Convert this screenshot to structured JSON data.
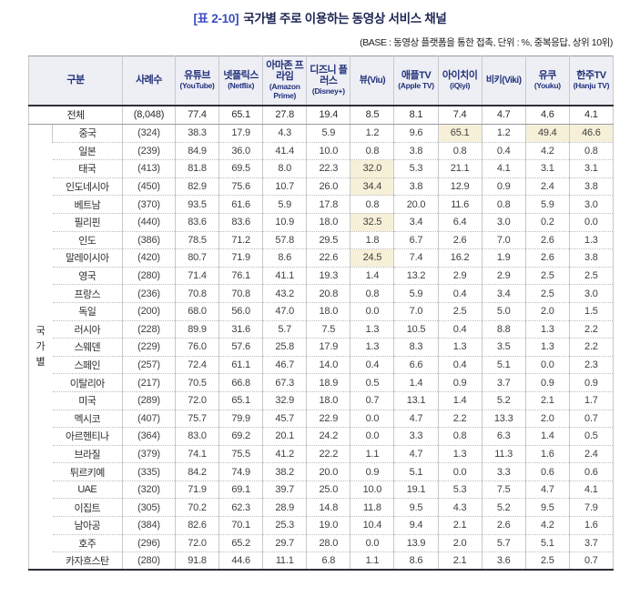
{
  "title": {
    "tag": "[표 2-10]",
    "text": "국가별 주로 이용하는 동영상 서비스 채널"
  },
  "subtitle": "(BASE : 동영상 플랫폼을 통한 접촉, 단위 : %, 중복응답, 상위 10위)",
  "colors": {
    "title_tag": "#3a4cc1",
    "title_text": "#1d2553",
    "header_bg": "#edeff5",
    "header_text": "#23317b",
    "highlight_bg": "#f6f0d8",
    "body_text": "#404040",
    "border_dark": "#2e2e38",
    "border_light": "#c9c9cd"
  },
  "table": {
    "corner_header": "구분",
    "n_header": "사례수",
    "group_label": "국가별",
    "group_label_chars": [
      "국",
      "가",
      "별"
    ],
    "columns": [
      {
        "ko": "유튜브",
        "en": "(YouTube)",
        "inline": false
      },
      {
        "ko": "넷플릭스",
        "en": "(Netflix)",
        "inline": false
      },
      {
        "ko": "아마존 프라임",
        "en": "(Amazon Prime)",
        "inline": false
      },
      {
        "ko": "디즈니 플러스",
        "en": "(Disney+)",
        "inline": false
      },
      {
        "ko": "뷰",
        "en": "(Viu)",
        "inline": true
      },
      {
        "ko": "애플TV",
        "en": "(Apple TV)",
        "inline": false
      },
      {
        "ko": "아이치이",
        "en": "(iQiyi)",
        "inline": false
      },
      {
        "ko": "비키",
        "en": "(Viki)",
        "inline": true
      },
      {
        "ko": "유쿠",
        "en": "(Youku)",
        "inline": false
      },
      {
        "ko": "한주TV",
        "en": "(Hanju TV)",
        "inline": false
      }
    ],
    "total_row": {
      "label": "전체",
      "n": "(8,048)",
      "values": [
        "77.4",
        "65.1",
        "27.8",
        "19.4",
        "8.5",
        "8.1",
        "7.4",
        "4.7",
        "4.6",
        "4.1"
      ]
    },
    "rows": [
      {
        "label": "중국",
        "n": "(324)",
        "values": [
          "38.3",
          "17.9",
          "4.3",
          "5.9",
          "1.2",
          "9.6",
          "65.1",
          "1.2",
          "49.4",
          "46.6"
        ],
        "highlights": [
          6,
          8,
          9
        ]
      },
      {
        "label": "일본",
        "n": "(239)",
        "values": [
          "84.9",
          "36.0",
          "41.4",
          "10.0",
          "0.8",
          "3.8",
          "0.8",
          "0.4",
          "4.2",
          "0.8"
        ],
        "highlights": []
      },
      {
        "label": "태국",
        "n": "(413)",
        "values": [
          "81.8",
          "69.5",
          "8.0",
          "22.3",
          "32.0",
          "5.3",
          "21.1",
          "4.1",
          "3.1",
          "3.1"
        ],
        "highlights": [
          4
        ]
      },
      {
        "label": "인도네시아",
        "n": "(450)",
        "values": [
          "82.9",
          "75.6",
          "10.7",
          "26.0",
          "34.4",
          "3.8",
          "12.9",
          "0.9",
          "2.4",
          "3.8"
        ],
        "highlights": [
          4
        ]
      },
      {
        "label": "베트남",
        "n": "(370)",
        "values": [
          "93.5",
          "61.6",
          "5.9",
          "17.8",
          "0.8",
          "20.0",
          "11.6",
          "0.8",
          "5.9",
          "3.0"
        ],
        "highlights": []
      },
      {
        "label": "필리핀",
        "n": "(440)",
        "values": [
          "83.6",
          "83.6",
          "10.9",
          "18.0",
          "32.5",
          "3.4",
          "6.4",
          "3.0",
          "0.2",
          "0.0"
        ],
        "highlights": [
          4
        ]
      },
      {
        "label": "인도",
        "n": "(386)",
        "values": [
          "78.5",
          "71.2",
          "57.8",
          "29.5",
          "1.8",
          "6.7",
          "2.6",
          "7.0",
          "2.6",
          "1.3"
        ],
        "highlights": []
      },
      {
        "label": "말레이시아",
        "n": "(420)",
        "values": [
          "80.7",
          "71.9",
          "8.6",
          "22.6",
          "24.5",
          "7.4",
          "16.2",
          "1.9",
          "2.6",
          "3.8"
        ],
        "highlights": [
          4
        ]
      },
      {
        "label": "영국",
        "n": "(280)",
        "values": [
          "71.4",
          "76.1",
          "41.1",
          "19.3",
          "1.4",
          "13.2",
          "2.9",
          "2.9",
          "2.5",
          "2.5"
        ],
        "highlights": []
      },
      {
        "label": "프랑스",
        "n": "(236)",
        "values": [
          "70.8",
          "70.8",
          "43.2",
          "20.8",
          "0.8",
          "5.9",
          "0.4",
          "3.4",
          "2.5",
          "3.0"
        ],
        "highlights": []
      },
      {
        "label": "독일",
        "n": "(200)",
        "values": [
          "68.0",
          "56.0",
          "47.0",
          "18.0",
          "0.0",
          "7.0",
          "2.5",
          "5.0",
          "2.0",
          "1.5"
        ],
        "highlights": []
      },
      {
        "label": "러시아",
        "n": "(228)",
        "values": [
          "89.9",
          "31.6",
          "5.7",
          "7.5",
          "1.3",
          "10.5",
          "0.4",
          "8.8",
          "1.3",
          "2.2"
        ],
        "highlights": []
      },
      {
        "label": "스웨덴",
        "n": "(229)",
        "values": [
          "76.0",
          "57.6",
          "25.8",
          "17.9",
          "1.3",
          "8.3",
          "1.3",
          "3.5",
          "1.3",
          "2.2"
        ],
        "highlights": []
      },
      {
        "label": "스페인",
        "n": "(257)",
        "values": [
          "72.4",
          "61.1",
          "46.7",
          "14.0",
          "0.4",
          "6.6",
          "0.4",
          "5.1",
          "0.0",
          "2.3"
        ],
        "highlights": []
      },
      {
        "label": "이탈리아",
        "n": "(217)",
        "values": [
          "70.5",
          "66.8",
          "67.3",
          "18.9",
          "0.5",
          "1.4",
          "0.9",
          "3.7",
          "0.9",
          "0.9"
        ],
        "highlights": []
      },
      {
        "label": "미국",
        "n": "(289)",
        "values": [
          "72.0",
          "65.1",
          "32.9",
          "18.0",
          "0.7",
          "13.1",
          "1.4",
          "5.2",
          "2.1",
          "1.7"
        ],
        "highlights": []
      },
      {
        "label": "멕시코",
        "n": "(407)",
        "values": [
          "75.7",
          "79.9",
          "45.7",
          "22.9",
          "0.0",
          "4.7",
          "2.2",
          "13.3",
          "2.0",
          "0.7"
        ],
        "highlights": []
      },
      {
        "label": "아르헨티나",
        "n": "(364)",
        "values": [
          "83.0",
          "69.2",
          "20.1",
          "24.2",
          "0.0",
          "3.3",
          "0.8",
          "6.3",
          "1.4",
          "0.5"
        ],
        "highlights": []
      },
      {
        "label": "브라질",
        "n": "(379)",
        "values": [
          "74.1",
          "75.5",
          "41.2",
          "22.2",
          "1.1",
          "4.7",
          "1.3",
          "11.3",
          "1.6",
          "2.4"
        ],
        "highlights": []
      },
      {
        "label": "튀르키예",
        "n": "(335)",
        "values": [
          "84.2",
          "74.9",
          "38.2",
          "20.0",
          "0.9",
          "5.1",
          "0.0",
          "3.3",
          "0.6",
          "0.6"
        ],
        "highlights": []
      },
      {
        "label": "UAE",
        "n": "(320)",
        "values": [
          "71.9",
          "69.1",
          "39.7",
          "25.0",
          "10.0",
          "19.1",
          "5.3",
          "7.5",
          "4.7",
          "4.1"
        ],
        "highlights": []
      },
      {
        "label": "이집트",
        "n": "(305)",
        "values": [
          "70.2",
          "62.3",
          "28.9",
          "14.8",
          "11.8",
          "9.5",
          "4.3",
          "5.2",
          "9.5",
          "7.9"
        ],
        "highlights": []
      },
      {
        "label": "남아공",
        "n": "(384)",
        "values": [
          "82.6",
          "70.1",
          "25.3",
          "19.0",
          "10.4",
          "9.4",
          "2.1",
          "2.6",
          "4.2",
          "1.6"
        ],
        "highlights": []
      },
      {
        "label": "호주",
        "n": "(296)",
        "values": [
          "72.0",
          "65.2",
          "29.7",
          "28.0",
          "0.0",
          "13.9",
          "2.0",
          "5.7",
          "5.1",
          "3.7"
        ],
        "highlights": []
      },
      {
        "label": "카자흐스탄",
        "n": "(280)",
        "values": [
          "91.8",
          "44.6",
          "11.1",
          "6.8",
          "1.1",
          "8.6",
          "2.1",
          "3.6",
          "2.5",
          "0.7"
        ],
        "highlights": []
      }
    ]
  }
}
